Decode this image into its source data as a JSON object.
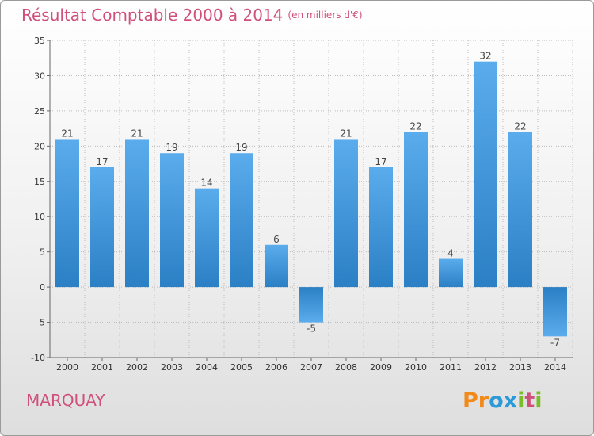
{
  "title": "Résultat Comptable 2000 à 2014",
  "unit_label": "(en milliers d'€)",
  "town": "MARQUAY",
  "logo": {
    "text": "Proxiti",
    "letters": [
      "P",
      "r",
      "o",
      "x",
      "i",
      "t",
      "i"
    ],
    "colors": [
      "#f28a1a",
      "#f28a1a",
      "#2a9ad8",
      "#2a9ad8",
      "#7abd2a",
      "#d0507a",
      "#7abd2a"
    ]
  },
  "colors": {
    "bar_light": "#5aacec",
    "bar_dark": "#2b7fc4",
    "title": "#d0507a",
    "grid": "#bbbbbb"
  },
  "chart_data": {
    "type": "bar",
    "title": "Résultat Comptable 2000 à 2014",
    "xlabel": "",
    "ylabel": "",
    "categories": [
      "2000",
      "2001",
      "2002",
      "2003",
      "2004",
      "2005",
      "2006",
      "2007",
      "2008",
      "2009",
      "2010",
      "2011",
      "2012",
      "2013",
      "2014"
    ],
    "values": [
      21,
      17,
      21,
      19,
      14,
      19,
      6,
      -5,
      21,
      17,
      22,
      4,
      32,
      22,
      -7
    ],
    "ylim": [
      -10,
      35
    ],
    "yticks": [
      -10,
      -5,
      0,
      5,
      10,
      15,
      20,
      25,
      30,
      35
    ],
    "grid": true
  }
}
